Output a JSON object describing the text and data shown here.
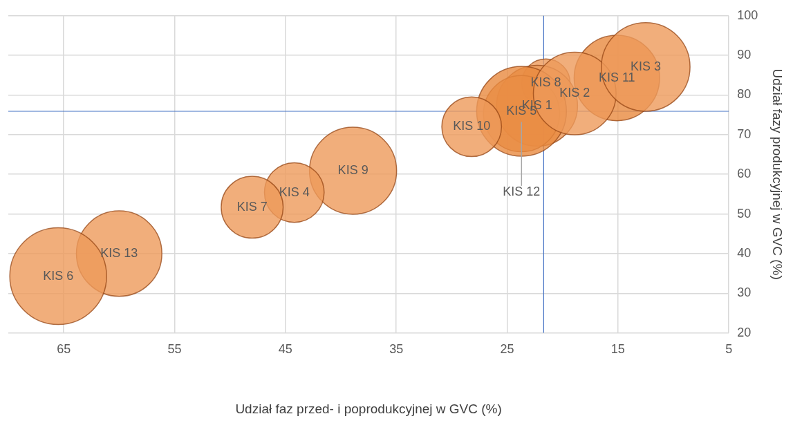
{
  "chart_data": {
    "type": "bubble",
    "xlabel": "Udział faz przed- i poprodukcyjnej w GVC (%)",
    "ylabel": "Udział fazy produkcyjnej w GVC (%)",
    "xlim": [
      70,
      5
    ],
    "xticks": [
      65,
      55,
      45,
      35,
      25,
      15,
      5
    ],
    "ylim": [
      20,
      100
    ],
    "yticks": [
      20,
      30,
      40,
      50,
      60,
      70,
      80,
      90,
      100
    ],
    "grid": true,
    "legend": false,
    "ref_lines": [
      {
        "axis": "x",
        "value": 21.7,
        "color": "#4472c4"
      },
      {
        "axis": "y",
        "value": 75.9,
        "color": "#4472c4"
      }
    ],
    "series": [
      {
        "name": "KIS 6",
        "color": "#ee9a5a",
        "x": [
          65.5
        ],
        "values": [
          34.3
        ],
        "sizes": [
          1
        ]
      },
      {
        "name": "KIS 13",
        "color": "#ee9a5a",
        "x": [
          60.0
        ],
        "values": [
          40.0
        ],
        "sizes": [
          0.78
        ]
      },
      {
        "name": "KIS 7",
        "color": "#ee9a5a",
        "x": [
          48.0
        ],
        "values": [
          51.7
        ],
        "sizes": [
          0.41
        ]
      },
      {
        "name": "KIS 4",
        "color": "#ee9a5a",
        "x": [
          44.2
        ],
        "values": [
          55.4
        ],
        "sizes": [
          0.38
        ]
      },
      {
        "name": "KIS 9",
        "color": "#ee9a5a",
        "x": [
          38.9
        ],
        "values": [
          60.9
        ],
        "sizes": [
          0.81
        ]
      },
      {
        "name": "KIS 10",
        "color": "#ee9a5a",
        "x": [
          28.2
        ],
        "values": [
          72.0
        ],
        "sizes": [
          0.38
        ]
      },
      {
        "name": "KIS 3",
        "color": "#ee9a5a",
        "x": [
          12.5
        ],
        "values": [
          87.1
        ],
        "sizes": [
          0.84
        ]
      },
      {
        "name": "KIS 2",
        "color": "#ee9a5a",
        "x": [
          18.9
        ],
        "values": [
          80.4
        ],
        "sizes": [
          0.73
        ]
      },
      {
        "name": "KIS 11",
        "color": "#e8893f",
        "x": [
          15.1
        ],
        "values": [
          84.3
        ],
        "sizes": [
          0.78
        ]
      },
      {
        "name": "KIS 5",
        "color": "#e8893f",
        "x": [
          23.7
        ],
        "values": [
          75.9
        ],
        "sizes": [
          0.86
        ]
      },
      {
        "name": "KIS 12",
        "color": "#ee9a5a",
        "x": [
          23.7
        ],
        "values": [
          75.3
        ],
        "sizes": [
          0.62
        ]
      },
      {
        "name": "KIS 1",
        "color": "#ee9a5a",
        "x": [
          22.3
        ],
        "values": [
          77.3
        ],
        "sizes": [
          0.7
        ]
      },
      {
        "name": "KIS 8",
        "color": "#ee9a5a",
        "x": [
          21.5
        ],
        "values": [
          83.0
        ],
        "sizes": [
          0.25
        ]
      }
    ]
  }
}
